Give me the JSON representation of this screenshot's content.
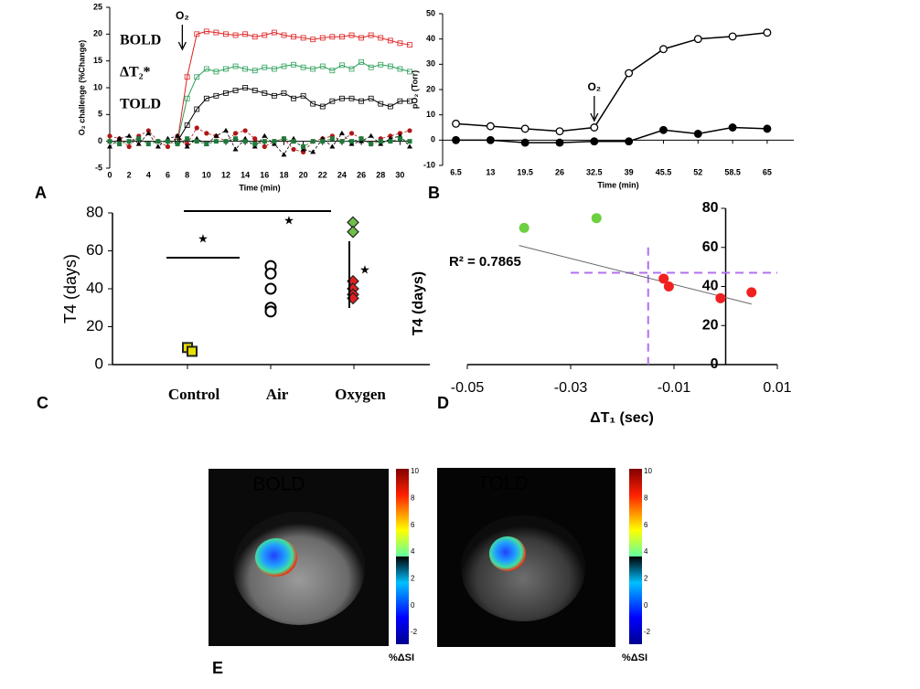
{
  "chart_data": [
    {
      "type": "line",
      "ylabel": "O₂ challenge (%Change)",
      "xlabel": "Time (min)",
      "xlim": [
        0,
        31
      ],
      "xticks": [
        0,
        2,
        4,
        6,
        8,
        10,
        12,
        14,
        16,
        18,
        20,
        22,
        24,
        26,
        28,
        30
      ],
      "ylim": [
        -5,
        25
      ],
      "yticks": [
        -5,
        0,
        5,
        10,
        15,
        20,
        25
      ],
      "x": [
        0,
        1,
        2,
        3,
        4,
        5,
        6,
        7,
        8,
        9,
        10,
        11,
        12,
        13,
        14,
        15,
        16,
        17,
        18,
        19,
        20,
        21,
        22,
        23,
        24,
        25,
        26,
        27,
        28,
        29,
        30,
        31
      ],
      "series": [
        {
          "name": "BOLD",
          "color": "#e02020",
          "values": [
            null,
            null,
            null,
            null,
            null,
            null,
            null,
            0,
            12,
            20,
            20.5,
            20.3,
            20,
            19.8,
            20,
            19.5,
            19.8,
            20.3,
            19.8,
            19.5,
            19.3,
            19,
            19.3,
            19.5,
            19.5,
            19.8,
            19.3,
            19.8,
            19.3,
            18.8,
            18.3,
            18
          ]
        },
        {
          "name": "ΔT₂*",
          "color": "#2ca05a",
          "values": [
            null,
            null,
            null,
            null,
            null,
            null,
            null,
            0,
            8,
            12,
            13.5,
            13,
            13.5,
            14,
            13.5,
            13.2,
            13.8,
            13.5,
            14,
            14.3,
            13.8,
            13.5,
            14,
            13.2,
            14.2,
            13.5,
            14.8,
            13.8,
            14.3,
            14,
            13.5,
            13
          ]
        },
        {
          "name": "TOLD",
          "color": "#000000",
          "values": [
            null,
            null,
            null,
            null,
            null,
            null,
            null,
            0,
            3,
            6,
            8,
            8.5,
            9,
            9.5,
            10,
            9.5,
            9,
            8.5,
            9,
            8,
            8.5,
            7,
            6.5,
            7.5,
            8,
            8,
            7.5,
            8,
            7,
            6.5,
            7.5,
            7.5
          ]
        },
        {
          "color": "#b01818",
          "values": [
            1,
            0.5,
            -1,
            1,
            2,
            0,
            -1,
            1,
            -0.5,
            2.5,
            1.5,
            1,
            0,
            1.5,
            2,
            0.5,
            -1,
            0,
            0.5,
            -1.5,
            -2,
            0,
            0.5,
            1,
            0,
            1.5,
            0.5,
            -0.5,
            0.5,
            1,
            1.5,
            2
          ]
        },
        {
          "color": "#000000",
          "values": [
            -1,
            0.5,
            1,
            -0.5,
            1.5,
            -1,
            0.5,
            1,
            -1,
            0.5,
            -0.5,
            1,
            2,
            -1.5,
            0.5,
            -1,
            1,
            -0.5,
            -2.5,
            0.5,
            -1.5,
            -2,
            0.5,
            -1,
            1.5,
            -0.5,
            0,
            1,
            -0.5,
            0.5,
            1,
            -1
          ]
        },
        {
          "color": "#1e7a3a",
          "values": [
            0,
            -0.5,
            0,
            0.5,
            -0.5,
            0,
            0,
            -0.5,
            0.5,
            0,
            -0.5,
            0,
            0,
            0.5,
            0,
            -0.5,
            0,
            0,
            0.5,
            0,
            -1,
            0,
            0,
            0.5,
            0,
            0,
            0.5,
            -0.5,
            0,
            0,
            0.5,
            0
          ]
        }
      ],
      "annotations": [
        {
          "text": "O₂",
          "x": 7.5
        }
      ]
    },
    {
      "type": "line",
      "ylabel": "pO₂ (Torr)",
      "xlabel": "Time (min)",
      "xlim": [
        4,
        70
      ],
      "xticks": [
        6.5,
        13,
        19.5,
        26,
        32.5,
        39,
        45.5,
        52,
        58.5,
        65
      ],
      "ylim": [
        -10,
        50
      ],
      "yticks": [
        -10,
        0,
        10,
        20,
        30,
        40,
        50
      ],
      "x": [
        6.5,
        13,
        19.5,
        26,
        32.5,
        39,
        45.5,
        52,
        58.5,
        65
      ],
      "series": [
        {
          "color": "#000000",
          "marker": "open",
          "values": [
            6.5,
            5.5,
            4.5,
            3.5,
            5,
            26.5,
            36,
            40,
            41,
            42.5
          ]
        },
        {
          "color": "#000000",
          "marker": "filled",
          "values": [
            0,
            0,
            -1,
            -1,
            -0.5,
            -0.5,
            4,
            2.5,
            5,
            4.5
          ]
        }
      ],
      "annotations": [
        {
          "text": "O₂",
          "x": 32.5
        }
      ]
    },
    {
      "type": "dot",
      "ylabel": "T4  (days)",
      "categories": [
        "Control",
        "Air",
        "Oxygen"
      ],
      "ylim": [
        0,
        80
      ],
      "yticks": [
        0,
        20,
        40,
        60,
        80
      ],
      "values": [
        [
          9,
          7
        ],
        [
          52,
          48,
          40,
          30,
          28
        ],
        [
          75,
          70,
          44,
          40,
          37,
          35
        ]
      ],
      "markers": [
        "square",
        "circle",
        "diamond"
      ],
      "point_colors": [
        [
          "#e8e000",
          "#e8e000"
        ],
        [
          "#ffffff",
          "#ffffff",
          "#ffffff",
          "#ffffff",
          "#ffffff"
        ],
        [
          "#6cc04a",
          "#6cc04a",
          "#e02020",
          "#e02020",
          "#e02020",
          "#e02020"
        ]
      ],
      "annotations": [
        {
          "text": "★"
        },
        {
          "text": "★"
        },
        {
          "text": "★"
        }
      ]
    },
    {
      "type": "scatter",
      "ylabel": "T4  (days)",
      "xlabel": "ΔT₁ (sec)",
      "xlim": [
        -0.05,
        0.01
      ],
      "xticks": [
        -0.05,
        -0.03,
        -0.01,
        0.01
      ],
      "ylim": [
        0,
        80
      ],
      "yticks": [
        0,
        20,
        40,
        60,
        80
      ],
      "x": [
        -0.039,
        -0.025,
        -0.012,
        -0.011,
        -0.001,
        0.005
      ],
      "values": [
        70,
        75,
        44,
        40,
        34,
        37
      ],
      "colors": [
        "#6cd040",
        "#6cd040",
        "#f02020",
        "#f02020",
        "#f02020",
        "#f02020"
      ],
      "trendline": {
        "x": [
          -0.04,
          0.005
        ],
        "y": [
          61,
          31
        ]
      },
      "ref_x": -0.015,
      "ref_y": 47,
      "annotations": [
        {
          "text": "R² = 0.7865"
        }
      ]
    }
  ],
  "panel_e": {
    "images": [
      {
        "title": "BOLD"
      },
      {
        "title": "TOLD"
      }
    ],
    "colorbar_ticks": [
      10,
      8,
      6,
      4,
      2,
      0,
      -2
    ],
    "colorbar_label": "%ΔSI"
  },
  "panel_labels": [
    "A",
    "B",
    "C",
    "D",
    "E"
  ]
}
